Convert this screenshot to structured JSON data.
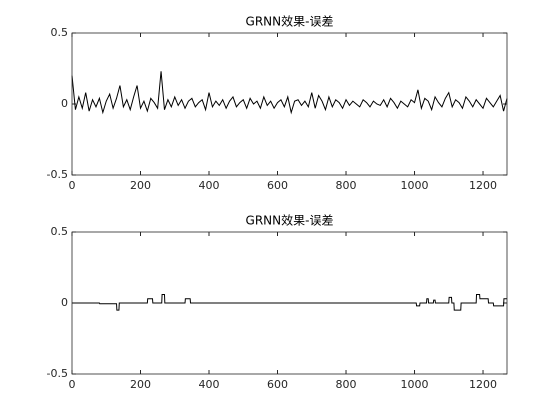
{
  "chart_data": [
    {
      "type": "line",
      "title": "GRNN效果-误差",
      "x": [
        0,
        10,
        20,
        30,
        40,
        50,
        60,
        70,
        80,
        90,
        100,
        110,
        120,
        130,
        140,
        150,
        160,
        170,
        180,
        190,
        200,
        210,
        220,
        230,
        240,
        250,
        260,
        270,
        280,
        290,
        300,
        310,
        320,
        330,
        340,
        350,
        360,
        370,
        380,
        390,
        400,
        410,
        420,
        430,
        440,
        450,
        460,
        470,
        480,
        490,
        500,
        510,
        520,
        530,
        540,
        550,
        560,
        570,
        580,
        590,
        600,
        610,
        620,
        630,
        640,
        650,
        660,
        670,
        680,
        690,
        700,
        710,
        720,
        730,
        740,
        750,
        760,
        770,
        780,
        790,
        800,
        810,
        820,
        830,
        840,
        850,
        860,
        870,
        880,
        890,
        900,
        910,
        920,
        930,
        940,
        950,
        960,
        970,
        980,
        990,
        1000,
        1010,
        1020,
        1030,
        1040,
        1050,
        1060,
        1070,
        1080,
        1090,
        1100,
        1110,
        1120,
        1130,
        1140,
        1150,
        1160,
        1170,
        1180,
        1190,
        1200,
        1210,
        1220,
        1230,
        1240,
        1250,
        1260,
        1270
      ],
      "series": [
        {
          "color": "#000000",
          "values": [
            0.2,
            -0.04,
            0.05,
            -0.03,
            0.08,
            -0.05,
            0.03,
            -0.02,
            0.04,
            -0.06,
            0.02,
            0.07,
            -0.03,
            0.04,
            0.13,
            -0.02,
            0.03,
            -0.04,
            0.05,
            0.13,
            -0.03,
            0.02,
            -0.05,
            0.04,
            0.01,
            -0.03,
            0.23,
            -0.04,
            0.03,
            -0.02,
            0.05,
            -0.01,
            0.03,
            -0.03,
            0.02,
            0.04,
            -0.02,
            0.01,
            0.03,
            -0.04,
            0.08,
            -0.02,
            0.02,
            -0.01,
            0.03,
            -0.03,
            0.02,
            0.05,
            -0.02,
            0.01,
            0.03,
            -0.03,
            0.04,
            0,
            0.02,
            -0.03,
            0.05,
            -0.01,
            0.02,
            -0.03,
            0.01,
            0.03,
            -0.02,
            0.05,
            -0.06,
            0.02,
            0.03,
            -0.01,
            0.02,
            -0.02,
            0.08,
            -0.03,
            0.06,
            0.02,
            -0.04,
            0.05,
            -0.02,
            0.03,
            0.01,
            -0.03,
            0.03,
            -0.01,
            0.02,
            0,
            -0.02,
            0.03,
            0.01,
            -0.02,
            0.02,
            0,
            -0.01,
            0.03,
            -0.02,
            0.04,
            0.01,
            -0.03,
            0.02,
            0,
            -0.02,
            0.03,
            0.01,
            0.1,
            -0.03,
            0.04,
            0.02,
            -0.04,
            0.05,
            0.01,
            -0.02,
            0.04,
            0.08,
            -0.02,
            0.03,
            0.01,
            -0.03,
            0.05,
            0.02,
            -0.02,
            0.03,
            0,
            -0.03,
            0.04,
            0.01,
            -0.02,
            0.02,
            0.06,
            -0.05,
            0.04
          ]
        }
      ],
      "xlim": [
        0,
        1270
      ],
      "xticks": [
        0,
        200,
        400,
        600,
        800,
        1000,
        1200
      ],
      "ylim": [
        -0.5,
        0.5
      ],
      "yticks": [
        -0.5,
        0,
        0.5
      ]
    },
    {
      "type": "line",
      "title": "GRNN效果-误差",
      "x": [
        0,
        80,
        81,
        130,
        131,
        137,
        138,
        220,
        221,
        235,
        236,
        262,
        263,
        270,
        271,
        330,
        331,
        345,
        346,
        1005,
        1006,
        1015,
        1016,
        1035,
        1036,
        1040,
        1041,
        1055,
        1056,
        1060,
        1061,
        1100,
        1101,
        1108,
        1109,
        1115,
        1116,
        1135,
        1136,
        1180,
        1181,
        1190,
        1191,
        1215,
        1216,
        1230,
        1231,
        1260,
        1261,
        1270
      ],
      "series": [
        {
          "color": "#000000",
          "values": [
            0,
            0,
            -0.005,
            -0.005,
            -0.05,
            -0.05,
            0,
            0,
            0.03,
            0.03,
            0,
            0,
            0.06,
            0.06,
            0,
            0,
            0.03,
            0.03,
            0,
            0,
            -0.02,
            -0.02,
            0,
            0,
            0.03,
            0.03,
            0,
            0,
            0.02,
            0.02,
            0,
            0,
            0.04,
            0.04,
            0,
            0,
            -0.05,
            -0.05,
            0,
            0,
            0.06,
            0.06,
            0.03,
            0.03,
            0,
            0,
            -0.02,
            -0.02,
            0.03,
            0.03
          ]
        }
      ],
      "xlim": [
        0,
        1270
      ],
      "xticks": [
        0,
        200,
        400,
        600,
        800,
        1000,
        1200
      ],
      "ylim": [
        -0.5,
        0.5
      ],
      "yticks": [
        -0.5,
        0,
        0.5
      ]
    }
  ]
}
